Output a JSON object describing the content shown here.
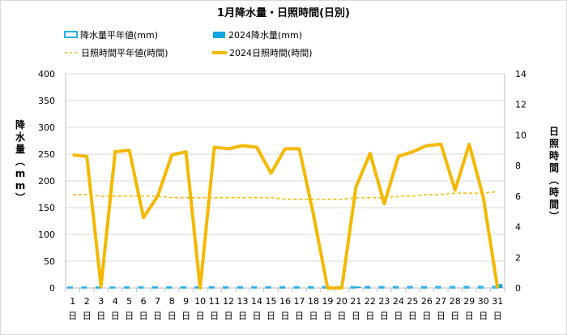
{
  "chart_data": {
    "type": "line",
    "title": "1月降水量・日照時間(日別)",
    "categories": [
      "1",
      "2",
      "3",
      "4",
      "5",
      "6",
      "7",
      "8",
      "9",
      "10",
      "11",
      "12",
      "13",
      "14",
      "15",
      "16",
      "17",
      "18",
      "19",
      "20",
      "21",
      "22",
      "23",
      "24",
      "25",
      "26",
      "27",
      "28",
      "29",
      "30",
      "31"
    ],
    "x_unit_label": "日",
    "left_axis": {
      "label": "降水量(mm)",
      "ylim": [
        0,
        400
      ],
      "ticks": [
        0,
        50,
        100,
        150,
        200,
        250,
        300,
        350,
        400
      ]
    },
    "right_axis": {
      "label": "日照時間(時間)",
      "ylim": [
        0,
        14
      ],
      "ticks": [
        0,
        2,
        4,
        6,
        8,
        10,
        12,
        14
      ]
    },
    "grid": true,
    "legend_position": "top-left",
    "series": [
      {
        "name": "降水量平年値(mm)",
        "kind": "bar",
        "axis": "left",
        "color": "#2ab0e8",
        "fill": "#ffffff",
        "values": [
          1.5,
          1.5,
          1.6,
          1.6,
          1.7,
          1.7,
          1.8,
          1.8,
          1.9,
          1.9,
          2.0,
          2.0,
          2.0,
          2.1,
          2.1,
          2.2,
          2.2,
          2.2,
          2.3,
          2.3,
          2.3,
          2.4,
          2.4,
          2.4,
          2.5,
          2.5,
          2.5,
          2.6,
          2.6,
          2.6,
          2.7
        ]
      },
      {
        "name": "2024降水量(mm)",
        "kind": "bar",
        "axis": "left",
        "color": "#0ea5e0",
        "values": [
          0,
          0,
          0,
          0,
          0,
          0,
          0,
          0,
          0,
          0,
          0,
          0,
          0,
          0,
          0,
          0,
          0,
          0,
          0,
          0,
          2.5,
          0,
          0,
          0,
          0,
          0,
          0,
          0,
          0,
          0,
          7
        ]
      },
      {
        "name": "日照時間平年値(時間)",
        "kind": "line",
        "dashed": true,
        "axis": "right",
        "color": "#f5b800",
        "values": [
          6.1,
          6.1,
          6.0,
          6.0,
          6.0,
          6.0,
          6.0,
          5.9,
          5.9,
          5.9,
          5.9,
          5.9,
          5.9,
          5.9,
          5.9,
          5.8,
          5.8,
          5.8,
          5.8,
          5.8,
          5.9,
          5.9,
          5.9,
          6.0,
          6.0,
          6.1,
          6.1,
          6.2,
          6.2,
          6.2,
          6.3
        ]
      },
      {
        "name": "2024日照時間(時間)",
        "kind": "line",
        "axis": "right",
        "color": "#f5b800",
        "values": [
          8.7,
          8.6,
          0.1,
          8.9,
          9.0,
          4.6,
          6.0,
          8.7,
          8.9,
          0.0,
          9.2,
          9.1,
          9.3,
          9.2,
          7.5,
          9.1,
          9.1,
          4.8,
          0.0,
          0.0,
          6.6,
          8.8,
          5.5,
          8.6,
          8.9,
          9.3,
          9.4,
          6.4,
          9.4,
          5.9,
          0.0
        ]
      }
    ]
  }
}
